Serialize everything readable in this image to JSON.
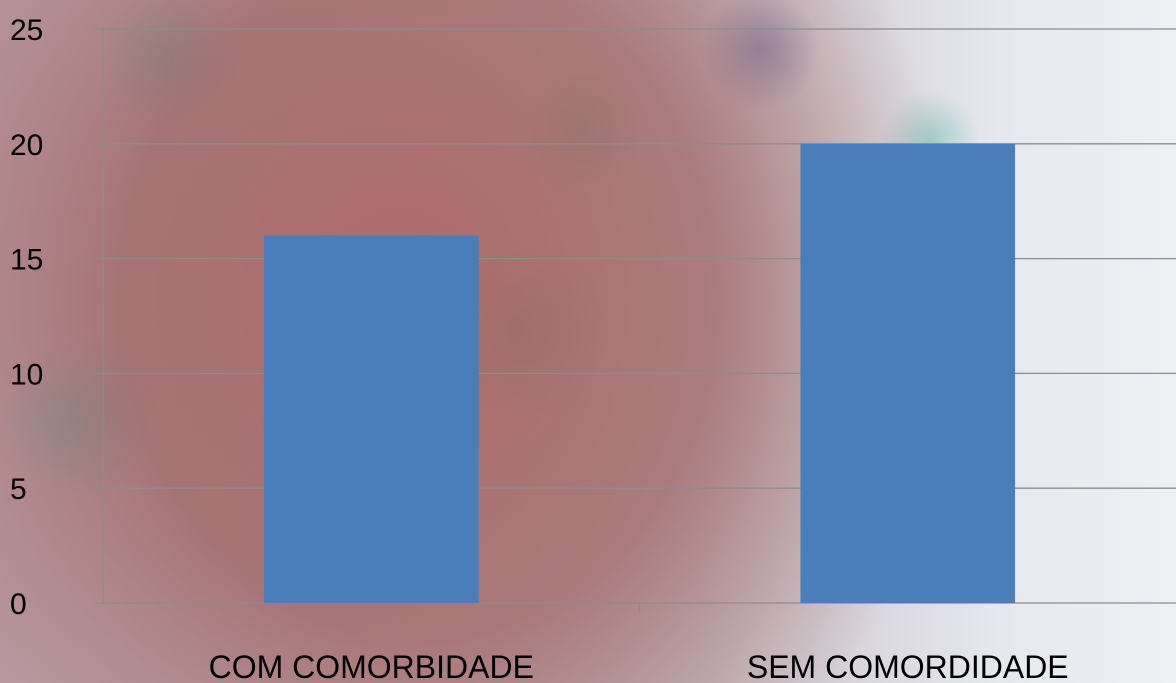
{
  "chart_data": {
    "type": "bar",
    "categories": [
      "COM COMORBIDADE",
      "SEM COMORDIDADE"
    ],
    "values": [
      16,
      20
    ],
    "ylim": [
      0,
      25
    ],
    "yticks": [
      0,
      5,
      10,
      15,
      20,
      25
    ],
    "grid": true,
    "title": "",
    "xlabel": "",
    "ylabel": "",
    "bar_color": "#4a7ebb",
    "grid_color": "#8c8c8c"
  }
}
